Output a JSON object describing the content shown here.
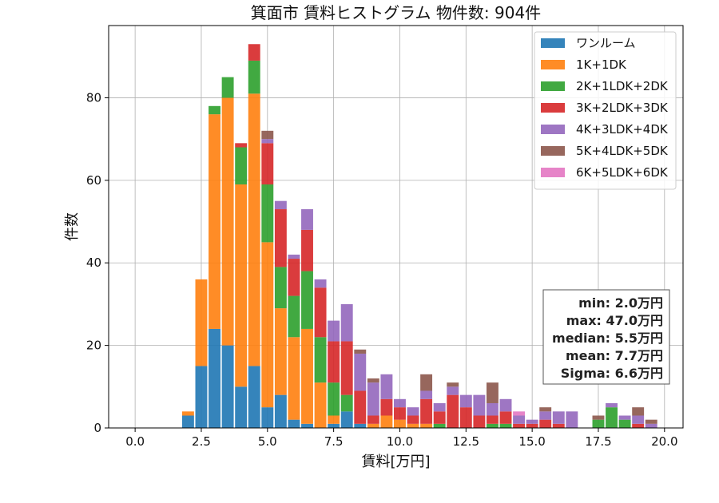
{
  "chart_data": {
    "type": "bar",
    "stacked": true,
    "title": "箕面市 賃料ヒストグラム 物件数: 904件",
    "xlabel": "賃料[万円]",
    "ylabel": "件数",
    "xlim": [
      -1.0,
      20.7
    ],
    "ylim": [
      0,
      97.5
    ],
    "xticks": [
      "0.0",
      "2.5",
      "5.0",
      "7.5",
      "10.0",
      "12.5",
      "15.0",
      "17.5",
      "20.0"
    ],
    "yticks": [
      "0",
      "20",
      "40",
      "60",
      "80"
    ],
    "grid": true,
    "legend_position": "top-right",
    "bin_width": 0.5,
    "bin_centers": [
      2.0,
      2.5,
      3.0,
      3.5,
      4.0,
      4.5,
      5.0,
      5.5,
      6.0,
      6.5,
      7.0,
      7.5,
      8.0,
      8.5,
      9.0,
      9.5,
      10.0,
      10.5,
      11.0,
      11.5,
      12.0,
      12.5,
      13.0,
      13.5,
      14.0,
      14.5,
      15.0,
      15.5,
      16.0,
      16.5,
      17.0,
      17.5,
      18.0,
      18.5,
      19.0,
      19.5
    ],
    "series": [
      {
        "name": "ワンルーム",
        "color": "#1f77b4",
        "values": [
          3,
          15,
          24,
          20,
          10,
          15,
          5,
          8,
          2,
          1,
          0,
          1,
          4,
          1,
          0,
          0,
          0,
          0,
          0,
          0,
          0,
          0,
          0,
          0,
          0,
          0,
          0,
          0,
          0,
          0,
          0,
          0,
          0,
          0,
          0,
          0
        ]
      },
      {
        "name": "1K+1DK",
        "color": "#ff7f0e",
        "values": [
          1,
          21,
          52,
          60,
          49,
          66,
          40,
          21,
          20,
          23,
          11,
          2,
          0,
          0,
          1,
          3,
          2,
          1,
          1,
          0,
          0,
          0,
          0,
          0,
          0,
          0,
          0,
          0,
          0,
          0,
          0,
          0,
          0,
          0,
          0,
          0
        ]
      },
      {
        "name": "2K+1LDK+2DK",
        "color": "#2ca02c",
        "values": [
          0,
          0,
          2,
          5,
          9,
          8,
          14,
          10,
          10,
          14,
          11,
          8,
          4,
          0,
          0,
          0,
          0,
          0,
          0,
          1,
          0,
          0,
          0,
          1,
          1,
          0,
          0,
          0,
          0,
          0,
          0,
          2,
          5,
          2,
          0,
          0
        ]
      },
      {
        "name": "3K+2LDK+3DK",
        "color": "#d62728",
        "values": [
          0,
          0,
          0,
          0,
          1,
          4,
          10,
          14,
          9,
          10,
          12,
          10,
          13,
          8,
          2,
          4,
          3,
          2,
          6,
          3,
          8,
          5,
          3,
          2,
          3,
          1,
          1,
          2,
          1,
          0,
          0,
          0,
          0,
          0,
          1,
          0
        ]
      },
      {
        "name": "4K+3LDK+4DK",
        "color": "#9467bd",
        "values": [
          0,
          0,
          0,
          0,
          0,
          0,
          1,
          2,
          1,
          5,
          2,
          5,
          9,
          9,
          8,
          6,
          2,
          2,
          2,
          2,
          2,
          3,
          5,
          3,
          3,
          2,
          1,
          2,
          3,
          4,
          0,
          0,
          1,
          1,
          2,
          1
        ]
      },
      {
        "name": "5K+4LDK+5DK",
        "color": "#8c564b",
        "values": [
          0,
          0,
          0,
          0,
          0,
          0,
          2,
          0,
          0,
          0,
          0,
          0,
          0,
          1,
          1,
          0,
          0,
          0,
          4,
          0,
          1,
          0,
          0,
          5,
          0,
          0,
          0,
          1,
          0,
          0,
          0,
          1,
          0,
          0,
          2,
          1
        ]
      },
      {
        "name": "6K+5LDK+6DK",
        "color": "#e377c2",
        "values": [
          0,
          0,
          0,
          0,
          0,
          0,
          0,
          0,
          0,
          0,
          0,
          0,
          0,
          0,
          0,
          0,
          0,
          0,
          0,
          0,
          0,
          0,
          0,
          0,
          0,
          1,
          0,
          0,
          0,
          0,
          0,
          0,
          0,
          0,
          0,
          0
        ]
      }
    ],
    "stats": [
      "min: 2.0万円",
      "max: 47.0万円",
      "median: 5.5万円",
      "mean: 7.7万円",
      "Sigma: 6.6万円"
    ]
  }
}
